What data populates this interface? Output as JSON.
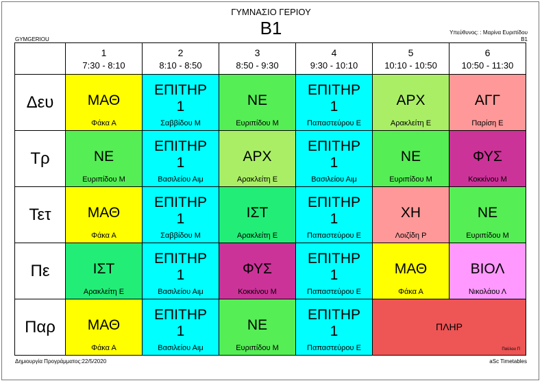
{
  "header": {
    "school": "ΓΥΜΝΑΣΙΟ ΓΕΡΙΟΥ",
    "class": "B1",
    "school_code": "GYMGERIOU",
    "responsible": "Υπεύθυνος: : Μαρίνα Ευριπίδου",
    "responsible_class": "B1"
  },
  "footer": {
    "created": "Δημιουργία Προγράμματος:22/5/2020",
    "software": "aSc Timetables"
  },
  "colors": {
    "yellow": "#ffff00",
    "cyan": "#00ffff",
    "green": "#55ee55",
    "lime": "#aaee66",
    "mint": "#22ee77",
    "pink": "#ff9999",
    "magenta": "#cc3399",
    "violet": "#ff99ff",
    "red": "#ee5555"
  },
  "periods": [
    {
      "num": "1",
      "time": "7:30 - 8:10"
    },
    {
      "num": "2",
      "time": "8:10 - 8:50"
    },
    {
      "num": "3",
      "time": "8:50 - 9:30"
    },
    {
      "num": "4",
      "time": "9:30 - 10:10"
    },
    {
      "num": "5",
      "time": "10:10 - 10:50"
    },
    {
      "num": "6",
      "time": "10:50 - 11:30"
    }
  ],
  "days": [
    {
      "name": "Δευ",
      "lessons": [
        {
          "subject": "ΜΑΘ",
          "teacher": "Φάκα Α",
          "color": "#ffff00"
        },
        {
          "subject": "ΕΠΙΤΗΡ 1",
          "teacher": "Σαββίδου Μ",
          "color": "#00ffff",
          "double": true
        },
        {
          "subject": "ΝΕ",
          "teacher": "Ευριπίδου Μ",
          "color": "#55ee55"
        },
        {
          "subject": "ΕΠΙΤΗΡ 1",
          "teacher": "Παπαστεύρου Ε",
          "color": "#00ffff",
          "double": true
        },
        {
          "subject": "ΑΡΧ",
          "teacher": "Αρακλείτη Ε",
          "color": "#aaee66"
        },
        {
          "subject": "ΑΓΓ",
          "teacher": "Παρίση Ε",
          "color": "#ff9999"
        }
      ]
    },
    {
      "name": "Τρ",
      "lessons": [
        {
          "subject": "ΝΕ",
          "teacher": "Ευριπίδου Μ",
          "color": "#55ee55"
        },
        {
          "subject": "ΕΠΙΤΗΡ 1",
          "teacher": "Βασιλείου Αιμ",
          "color": "#00ffff",
          "double": true
        },
        {
          "subject": "ΑΡΧ",
          "teacher": "Αρακλείτη Ε",
          "color": "#aaee66"
        },
        {
          "subject": "ΕΠΙΤΗΡ 1",
          "teacher": "Βασιλείου Αιμ",
          "color": "#00ffff",
          "double": true
        },
        {
          "subject": "ΝΕ",
          "teacher": "Ευριπίδου Μ",
          "color": "#55ee55"
        },
        {
          "subject": "ΦΥΣ",
          "teacher": "Κοκκίνου Μ",
          "color": "#cc3399"
        }
      ]
    },
    {
      "name": "Τετ",
      "lessons": [
        {
          "subject": "ΜΑΘ",
          "teacher": "Φάκα Α",
          "color": "#ffff00"
        },
        {
          "subject": "ΕΠΙΤΗΡ 1",
          "teacher": "Σαββίδου Μ",
          "color": "#00ffff",
          "double": true
        },
        {
          "subject": "ΙΣΤ",
          "teacher": "Αρακλείτη Ε",
          "color": "#22ee77"
        },
        {
          "subject": "ΕΠΙΤΗΡ 1",
          "teacher": "Παπαστεύρου Ε",
          "color": "#00ffff",
          "double": true
        },
        {
          "subject": "ΧΗ",
          "teacher": "Λοιζίδη Ρ",
          "color": "#ff9999"
        },
        {
          "subject": "ΝΕ",
          "teacher": "Ευριπίδου Μ",
          "color": "#55ee55"
        }
      ]
    },
    {
      "name": "Πε",
      "lessons": [
        {
          "subject": "ΙΣΤ",
          "teacher": "Αρακλείτη Ε",
          "color": "#22ee77"
        },
        {
          "subject": "ΕΠΙΤΗΡ 1",
          "teacher": "Βασιλείου Αιμ",
          "color": "#00ffff",
          "double": true
        },
        {
          "subject": "ΦΥΣ",
          "teacher": "Κοκκίνου Μ",
          "color": "#cc3399"
        },
        {
          "subject": "ΕΠΙΤΗΡ 1",
          "teacher": "Παπαστεύρου Ε",
          "color": "#00ffff",
          "double": true
        },
        {
          "subject": "ΜΑΘ",
          "teacher": "Φάκα Α",
          "color": "#ffff00"
        },
        {
          "subject": "ΒΙΟΛ",
          "teacher": "Νικολάου Λ",
          "color": "#ff99ff"
        }
      ]
    },
    {
      "name": "Παρ",
      "lessons": [
        {
          "subject": "ΜΑΘ",
          "teacher": "Φάκα Α",
          "color": "#ffff00"
        },
        {
          "subject": "ΕΠΙΤΗΡ 1",
          "teacher": "Βασιλείου Αιμ",
          "color": "#00ffff",
          "double": true
        },
        {
          "subject": "ΝΕ",
          "teacher": "Ευριπίδου Μ",
          "color": "#55ee55"
        },
        {
          "subject": "ΕΠΙΤΗΡ 1",
          "teacher": "Παπαστεύρου Ε",
          "color": "#00ffff",
          "double": true
        },
        {
          "subject": "ΠΛΗΡ",
          "teacher": "Παύλου Π",
          "color": "#ee5555",
          "span": 2,
          "small_teacher": true
        }
      ]
    }
  ]
}
